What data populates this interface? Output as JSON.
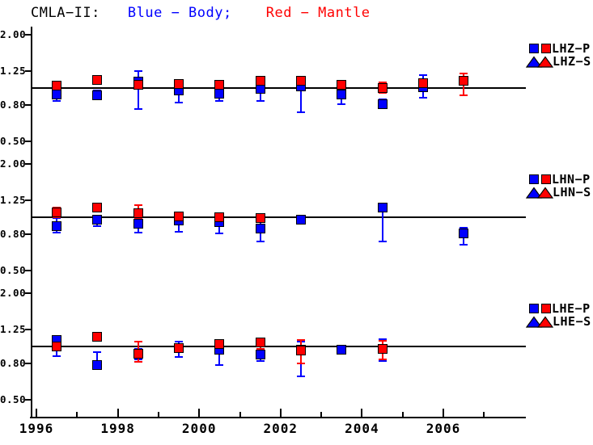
{
  "title": {
    "part1": "CMLA−II:",
    "part2": "Blue − Body;",
    "part3": "Red − Mantle"
  },
  "colors": {
    "body": "#0000ff",
    "mantle": "#ff0000",
    "axis": "#000000",
    "background": "#ffffff"
  },
  "axes": {
    "x_major": [
      {
        "label": "1996",
        "year": 1996
      },
      {
        "label": "1998",
        "year": 1998
      },
      {
        "label": "2000",
        "year": 2000
      },
      {
        "label": "2002",
        "year": 2002
      },
      {
        "label": "2004",
        "year": 2004
      },
      {
        "label": "2006",
        "year": 2006
      }
    ],
    "x_minor_years": [
      1997,
      1999,
      2001,
      2003,
      2005,
      2007
    ],
    "y_tick_labels": [
      "2.00",
      "1.25",
      "0.80",
      "0.50"
    ],
    "y_tick_values": [
      2.0,
      1.25,
      0.8,
      0.5
    ]
  },
  "chart_data": [
    {
      "type": "scatter",
      "panel": "LHZ",
      "legend": {
        "p": "LHZ−P",
        "s": "LHZ−S"
      },
      "y_scale": "log",
      "ylim": [
        0.45,
        2.2
      ],
      "y_ticks": [
        2.0,
        1.25,
        0.8,
        0.5
      ],
      "reference_line": 1.0,
      "x_range": [
        1996,
        2008
      ],
      "series": [
        {
          "name": "Body",
          "symbol": "square",
          "color_key": "body",
          "points": [
            {
              "x": 1996.5,
              "y": 0.92,
              "lo": 0.85,
              "hi": 1.01
            },
            {
              "x": 1997.5,
              "y": 0.91,
              "lo": 0.86,
              "hi": 0.97
            },
            {
              "x": 1998.5,
              "y": 1.09,
              "lo": 0.76,
              "hi": 1.24
            },
            {
              "x": 1999.5,
              "y": 0.97,
              "lo": 0.83,
              "hi": 1.1
            },
            {
              "x": 2000.5,
              "y": 0.93,
              "lo": 0.85,
              "hi": 1.06
            },
            {
              "x": 2001.5,
              "y": 0.99,
              "lo": 0.85,
              "hi": 1.12
            },
            {
              "x": 2002.5,
              "y": 1.02,
              "lo": 0.73,
              "hi": 1.15
            },
            {
              "x": 2003.5,
              "y": 0.92,
              "lo": 0.81,
              "hi": 0.99
            },
            {
              "x": 2004.5,
              "y": 0.81,
              "lo": 0.77,
              "hi": 0.86
            },
            {
              "x": 2005.5,
              "y": 1.01,
              "lo": 0.88,
              "hi": 1.18
            }
          ]
        },
        {
          "name": "Mantle",
          "symbol": "square",
          "color_key": "mantle",
          "points": [
            {
              "x": 1996.5,
              "y": 1.03,
              "lo": 0.96,
              "hi": 1.08
            },
            {
              "x": 1997.5,
              "y": 1.11,
              "lo": 1.05,
              "hi": 1.16
            },
            {
              "x": 1998.5,
              "y": 1.04,
              "lo": 0.99,
              "hi": 1.09
            },
            {
              "x": 1999.5,
              "y": 1.05,
              "lo": 1.0,
              "hi": 1.1
            },
            {
              "x": 2000.5,
              "y": 1.04,
              "lo": 0.99,
              "hi": 1.08
            },
            {
              "x": 2001.5,
              "y": 1.1,
              "lo": 1.05,
              "hi": 1.15
            },
            {
              "x": 2002.5,
              "y": 1.1,
              "lo": 1.05,
              "hi": 1.14
            },
            {
              "x": 2003.5,
              "y": 1.04,
              "lo": 1.0,
              "hi": 1.09
            },
            {
              "x": 2004.5,
              "y": 1.0,
              "lo": 0.94,
              "hi": 1.08
            },
            {
              "x": 2005.5,
              "y": 1.06,
              "lo": 1.01,
              "hi": 1.11
            },
            {
              "x": 2006.5,
              "y": 1.1,
              "lo": 0.91,
              "hi": 1.21
            }
          ]
        }
      ]
    },
    {
      "type": "scatter",
      "panel": "LHN",
      "legend": {
        "p": "LHN−P",
        "s": "LHN−S"
      },
      "y_scale": "log",
      "ylim": [
        0.45,
        2.2
      ],
      "y_ticks": [
        2.0,
        1.25,
        0.8,
        0.5
      ],
      "reference_line": 1.0,
      "x_range": [
        1996,
        2008
      ],
      "series": [
        {
          "name": "Body",
          "symbol": "square",
          "color_key": "body",
          "points": [
            {
              "x": 1996.5,
              "y": 0.89,
              "lo": 0.82,
              "hi": 0.99
            },
            {
              "x": 1997.5,
              "y": 0.97,
              "lo": 0.89,
              "hi": 1.02
            },
            {
              "x": 1998.5,
              "y": 0.92,
              "lo": 0.82,
              "hi": 1.0
            },
            {
              "x": 1999.5,
              "y": 0.96,
              "lo": 0.83,
              "hi": 1.07
            },
            {
              "x": 2000.5,
              "y": 0.94,
              "lo": 0.81,
              "hi": 1.04
            },
            {
              "x": 2001.5,
              "y": 0.86,
              "lo": 0.73,
              "hi": 0.97
            },
            {
              "x": 2002.5,
              "y": 0.97,
              "lo": 0.93,
              "hi": 1.01
            },
            {
              "x": 2004.5,
              "y": 1.13,
              "lo": 0.73,
              "hi": 1.17
            },
            {
              "x": 2006.5,
              "y": 0.81,
              "lo": 0.7,
              "hi": 0.87
            }
          ]
        },
        {
          "name": "Mantle",
          "symbol": "square",
          "color_key": "mantle",
          "points": [
            {
              "x": 1996.5,
              "y": 1.06,
              "lo": 1.0,
              "hi": 1.13
            },
            {
              "x": 1997.5,
              "y": 1.13,
              "lo": 1.08,
              "hi": 1.19
            },
            {
              "x": 1998.5,
              "y": 1.05,
              "lo": 0.99,
              "hi": 1.17
            },
            {
              "x": 1999.5,
              "y": 1.01,
              "lo": 0.96,
              "hi": 1.06
            },
            {
              "x": 2000.5,
              "y": 1.0,
              "lo": 0.95,
              "hi": 1.05
            },
            {
              "x": 2001.5,
              "y": 0.99,
              "lo": 0.95,
              "hi": 1.04
            }
          ]
        }
      ]
    },
    {
      "type": "scatter",
      "panel": "LHE",
      "legend": {
        "p": "LHE−P",
        "s": "LHE−S"
      },
      "y_scale": "log",
      "ylim": [
        0.45,
        2.2
      ],
      "y_ticks": [
        2.0,
        1.25,
        0.8,
        0.5
      ],
      "reference_line": 1.0,
      "x_range": [
        1996,
        2008
      ],
      "series": [
        {
          "name": "Body",
          "symbol": "square",
          "color_key": "body",
          "points": [
            {
              "x": 1996.5,
              "y": 1.09,
              "lo": 0.88,
              "hi": 1.13
            },
            {
              "x": 1997.5,
              "y": 0.79,
              "lo": 0.76,
              "hi": 0.93
            },
            {
              "x": 1998.5,
              "y": 0.91,
              "lo": 0.85,
              "hi": 0.97
            },
            {
              "x": 1999.5,
              "y": 0.98,
              "lo": 0.87,
              "hi": 1.07
            },
            {
              "x": 2000.5,
              "y": 0.96,
              "lo": 0.79,
              "hi": 1.03
            },
            {
              "x": 2001.5,
              "y": 0.9,
              "lo": 0.83,
              "hi": 0.97
            },
            {
              "x": 2002.5,
              "y": 0.96,
              "lo": 0.68,
              "hi": 1.06
            },
            {
              "x": 2003.5,
              "y": 0.96,
              "lo": 0.92,
              "hi": 0.99
            },
            {
              "x": 2004.5,
              "y": 0.97,
              "lo": 0.83,
              "hi": 1.1
            }
          ]
        },
        {
          "name": "Mantle",
          "symbol": "square",
          "color_key": "mantle",
          "points": [
            {
              "x": 1996.5,
              "y": 1.0,
              "lo": 0.96,
              "hi": 1.06
            },
            {
              "x": 1997.5,
              "y": 1.13,
              "lo": 1.09,
              "hi": 1.18
            },
            {
              "x": 1998.5,
              "y": 0.91,
              "lo": 0.82,
              "hi": 1.07
            },
            {
              "x": 1999.5,
              "y": 0.98,
              "lo": 0.94,
              "hi": 1.03
            },
            {
              "x": 2000.5,
              "y": 1.03,
              "lo": 0.99,
              "hi": 1.08
            },
            {
              "x": 2001.5,
              "y": 1.05,
              "lo": 0.97,
              "hi": 1.1
            },
            {
              "x": 2002.5,
              "y": 0.95,
              "lo": 0.8,
              "hi": 1.09
            },
            {
              "x": 2004.5,
              "y": 0.97,
              "lo": 0.85,
              "hi": 1.08
            }
          ]
        }
      ]
    }
  ]
}
